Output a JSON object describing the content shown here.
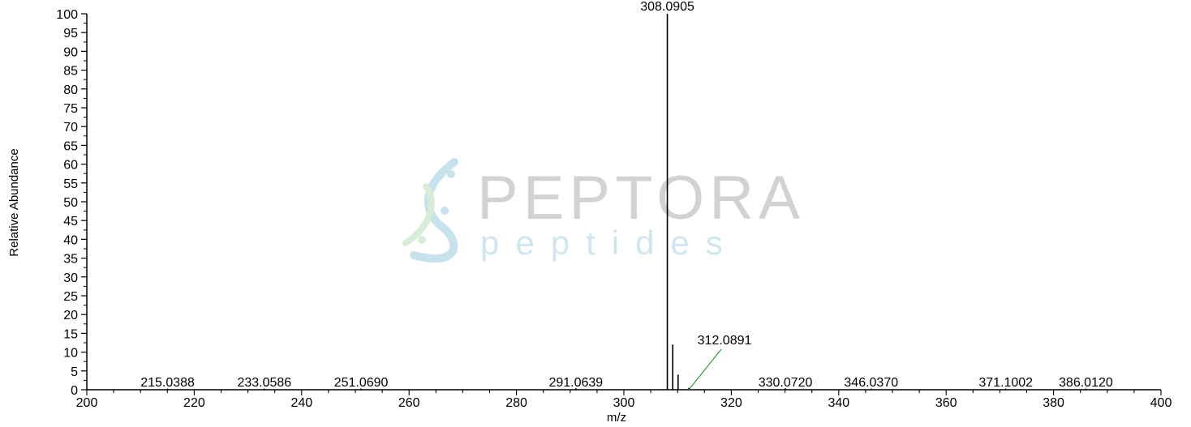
{
  "watermark": {
    "brand": "PEPTORA",
    "sub": "peptides",
    "colors": {
      "brand": "#d2d2d2",
      "sub": "#cfe6ee",
      "helix_a": "#b9dbe8",
      "helix_b": "#cfe8cf"
    }
  },
  "chart_data": {
    "type": "bar",
    "title": "",
    "xlabel": "m/z",
    "ylabel": "Relative Abundance",
    "xlim": [
      200,
      400
    ],
    "ylim": [
      0,
      100
    ],
    "x_ticks": [
      200,
      220,
      240,
      260,
      280,
      300,
      320,
      340,
      360,
      380,
      400
    ],
    "x_tick_labels": [
      "200",
      "220",
      "240",
      "260",
      "280",
      "300",
      "320",
      "340",
      "360",
      "380",
      "400"
    ],
    "y_ticks": [
      0,
      5,
      10,
      15,
      20,
      25,
      30,
      35,
      40,
      45,
      50,
      55,
      60,
      65,
      70,
      75,
      80,
      85,
      90,
      95,
      100
    ],
    "y_tick_labels": [
      "0",
      "5",
      "10",
      "15",
      "20",
      "25",
      "30",
      "35",
      "40",
      "45",
      "50",
      "55",
      "60",
      "65",
      "70",
      "75",
      "80",
      "85",
      "90",
      "95",
      "100"
    ],
    "grid": false,
    "peaks": [
      {
        "mz": 215.0388,
        "abundance": 0.3,
        "label": "215.0388"
      },
      {
        "mz": 233.0586,
        "abundance": 0.3,
        "label": "233.0586"
      },
      {
        "mz": 251.069,
        "abundance": 0.3,
        "label": "251.0690"
      },
      {
        "mz": 291.0639,
        "abundance": 0.4,
        "label": "291.0639"
      },
      {
        "mz": 308.0905,
        "abundance": 100,
        "label": "308.0905"
      },
      {
        "mz": 309.09,
        "abundance": 12,
        "label": ""
      },
      {
        "mz": 310.09,
        "abundance": 4,
        "label": ""
      },
      {
        "mz": 312.0891,
        "abundance": 0.5,
        "label": "312.0891"
      },
      {
        "mz": 330.072,
        "abundance": 0.4,
        "label": "330.0720"
      },
      {
        "mz": 346.037,
        "abundance": 0.3,
        "label": "346.0370"
      },
      {
        "mz": 371.1002,
        "abundance": 0.3,
        "label": "371.1002"
      },
      {
        "mz": 386.012,
        "abundance": 0.3,
        "label": "386.0120"
      }
    ],
    "colors": {
      "peak": "#000000",
      "leader": "#2aa12a",
      "axis": "#000000"
    }
  }
}
